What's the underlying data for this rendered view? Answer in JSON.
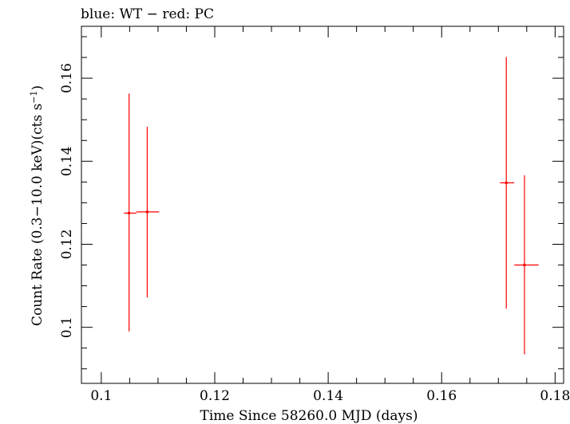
{
  "chart_data": {
    "type": "scatter",
    "title": "blue: WT − red: PC",
    "xlabel": "Time Since 58260.0 MJD (days)",
    "ylabel_main": "Count Rate (0.3−10.0 keV)(cts s",
    "ylabel_sup": "−1",
    "ylabel_close": ")",
    "xlim": [
      0.0965,
      0.1815
    ],
    "ylim": [
      0.0865,
      0.1725
    ],
    "x_ticks": [
      0.1,
      0.12,
      0.14,
      0.16,
      0.18
    ],
    "x_tick_labels": [
      "0.1",
      "0.12",
      "0.14",
      "0.16",
      "0.18"
    ],
    "y_ticks": [
      0.1,
      0.12,
      0.14,
      0.16
    ],
    "y_tick_labels": [
      "0.1",
      "0.12",
      "0.14",
      "0.16"
    ],
    "grid": false,
    "series": [
      {
        "color": "#ff0000",
        "points": [
          {
            "x": 0.1049,
            "xerr_lo": 0.104,
            "xerr_hi": 0.1062,
            "y": 0.1275,
            "yerr_lo": 0.099,
            "yerr_hi": 0.1563
          },
          {
            "x": 0.1081,
            "xerr_lo": 0.1062,
            "xerr_hi": 0.1102,
            "y": 0.1278,
            "yerr_lo": 0.1072,
            "yerr_hi": 0.1483
          },
          {
            "x": 0.1714,
            "xerr_lo": 0.1703,
            "xerr_hi": 0.1728,
            "y": 0.1348,
            "yerr_lo": 0.1045,
            "yerr_hi": 0.1651
          },
          {
            "x": 0.1746,
            "xerr_lo": 0.1728,
            "xerr_hi": 0.1771,
            "y": 0.115,
            "yerr_lo": 0.0935,
            "yerr_hi": 0.1366
          }
        ]
      }
    ]
  }
}
